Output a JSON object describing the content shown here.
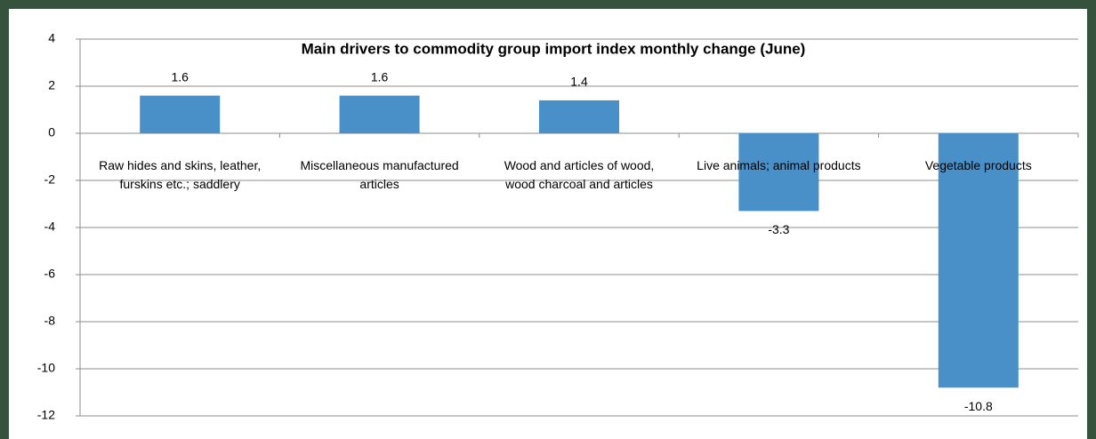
{
  "chart_data": {
    "type": "bar",
    "title": "Main drivers to commodity group import index monthly change (June)",
    "categories": [
      "Raw hides and skins, leather, furskins etc.; saddlery",
      "Miscellaneous manufactured articles",
      "Wood and articles of wood, wood charcoal and articles",
      "Live animals; animal products",
      "Vegetable products"
    ],
    "values": [
      1.6,
      1.6,
      1.4,
      -3.3,
      -10.8
    ],
    "color": "#4a90c8",
    "ylim": [
      -12,
      4
    ],
    "yticks": [
      -12,
      -10,
      -8,
      -6,
      -4,
      -2,
      0,
      2,
      4
    ],
    "grid": true
  }
}
